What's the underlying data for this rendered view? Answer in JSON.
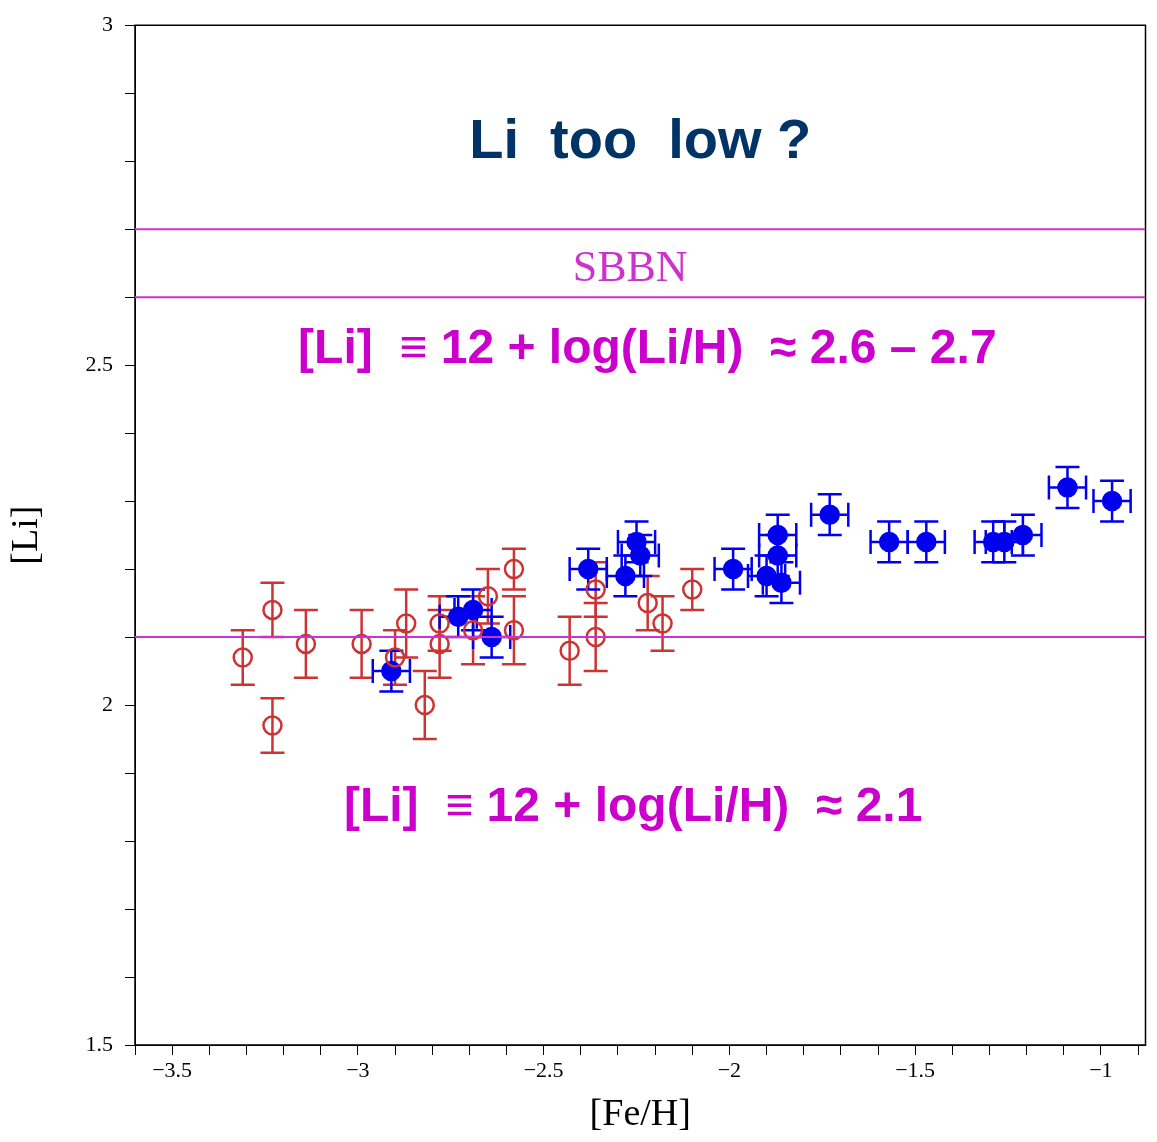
{
  "chart_data": {
    "type": "scatter",
    "xlabel": "[Fe/H]",
    "ylabel": "[Li]",
    "xlim": [
      -3.6,
      -0.88
    ],
    "ylim": [
      1.5,
      3
    ],
    "xticks": [
      {
        "value": -3.6,
        "label": null
      },
      {
        "value": -3.5,
        "label": "−3.5"
      },
      {
        "value": -3.4,
        "label": null
      },
      {
        "value": -3.3,
        "label": null
      },
      {
        "value": -3.2,
        "label": null
      },
      {
        "value": -3.1,
        "label": null
      },
      {
        "value": -3,
        "label": "−3"
      },
      {
        "value": -2.9,
        "label": null
      },
      {
        "value": -2.8,
        "label": null
      },
      {
        "value": -2.7,
        "label": null
      },
      {
        "value": -2.6,
        "label": null
      },
      {
        "value": -2.5,
        "label": "−2.5"
      },
      {
        "value": -2.4,
        "label": null
      },
      {
        "value": -2.3,
        "label": null
      },
      {
        "value": -2.2,
        "label": null
      },
      {
        "value": -2.1,
        "label": null
      },
      {
        "value": -2,
        "label": "−2"
      },
      {
        "value": -1.9,
        "label": null
      },
      {
        "value": -1.8,
        "label": null
      },
      {
        "value": -1.7,
        "label": null
      },
      {
        "value": -1.6,
        "label": null
      },
      {
        "value": -1.5,
        "label": "−1.5"
      },
      {
        "value": -1.4,
        "label": null
      },
      {
        "value": -1.3,
        "label": null
      },
      {
        "value": -1.2,
        "label": null
      },
      {
        "value": -1.1,
        "label": null
      },
      {
        "value": -1,
        "label": "−1"
      },
      {
        "value": -0.9,
        "label": null
      }
    ],
    "yticks": [
      1.5,
      {
        "value": 1.6,
        "label": null
      },
      {
        "value": 1.7,
        "label": null
      },
      {
        "value": 1.8,
        "label": null
      },
      {
        "value": 1.9,
        "label": null
      },
      2,
      {
        "value": 2.1,
        "label": null
      },
      {
        "value": 2.2,
        "label": null
      },
      {
        "value": 2.3,
        "label": null
      },
      {
        "value": 2.4,
        "label": null
      },
      2.5,
      {
        "value": 2.6,
        "label": null
      },
      {
        "value": 2.7,
        "label": null
      },
      {
        "value": 2.8,
        "label": null
      },
      {
        "value": 2.9,
        "label": null
      },
      3
    ],
    "marker": "circle",
    "grid": false,
    "legend": false,
    "ref_lines": [
      {
        "axis": "y",
        "value": 2.7,
        "color": "#cc33cc"
      },
      {
        "axis": "y",
        "value": 2.6,
        "label": "SBBN",
        "color": "#cc33cc"
      },
      {
        "axis": "y",
        "value": 2.1,
        "color": "#cc33cc"
      }
    ],
    "annotations": [
      "Li  too  low ?",
      "[Li]  ≡ 12 + log(Li/H)  ≈ 2.6 – 2.7",
      "[Li]  ≡ 12 + log(Li/H)  ≈ 2.1"
    ],
    "series": [
      {
        "color": "#cc3333",
        "x": [
          -3.31,
          -3.23,
          -3.23,
          -3.14,
          -2.99,
          -2.9,
          -2.87,
          -2.82,
          -2.78,
          -2.78,
          -2.69,
          -2.65,
          -2.58,
          -2.58,
          -2.43,
          -2.36,
          -2.36,
          -2.22,
          -2.18,
          -2.1
        ],
        "values": [
          2.07,
          2.14,
          1.97,
          2.09,
          2.09,
          2.07,
          2.12,
          2.0,
          2.12,
          2.09,
          2.11,
          2.16,
          2.2,
          2.11,
          2.08,
          2.17,
          2.1,
          2.15,
          2.12,
          2.17
        ],
        "errors": [
          0.04,
          0.04,
          0.04,
          0.05,
          0.05,
          0.04,
          0.05,
          0.05,
          0.04,
          0.05,
          0.05,
          0.04,
          0.03,
          0.05,
          0.05,
          0.04,
          0.05,
          0.04,
          0.04,
          0.03
        ]
      },
      {
        "color": "#0000ee",
        "x": [
          -2.91,
          -2.73,
          -2.69,
          -2.64,
          -2.38,
          -2.28,
          -2.25,
          -2.24,
          -1.99,
          -1.9,
          -1.87,
          -1.87,
          -1.86,
          -1.73,
          -1.57,
          -1.47,
          -1.29,
          -1.26,
          -1.21,
          -1.09,
          -0.97
        ],
        "values": [
          2.05,
          2.13,
          2.14,
          2.1,
          2.2,
          2.19,
          2.24,
          2.22,
          2.2,
          2.19,
          2.25,
          2.22,
          2.18,
          2.28,
          2.24,
          2.24,
          2.24,
          2.24,
          2.25,
          2.32,
          2.3
        ],
        "errors": [
          0.03,
          0.03,
          0.03,
          0.03,
          0.03,
          0.03,
          0.03,
          0.03,
          0.03,
          0.03,
          0.03,
          0.03,
          0.03,
          0.03,
          0.03,
          0.03,
          0.03,
          0.03,
          0.03,
          0.03,
          0.03
        ],
        "xerrors": [
          0.05,
          0.05,
          0.05,
          0.05,
          0.05,
          0.05,
          0.05,
          0.05,
          0.05,
          0.05,
          0.05,
          0.05,
          0.05,
          0.05,
          0.05,
          0.05,
          0.05,
          0.05,
          0.05,
          0.05,
          0.05
        ]
      }
    ]
  }
}
